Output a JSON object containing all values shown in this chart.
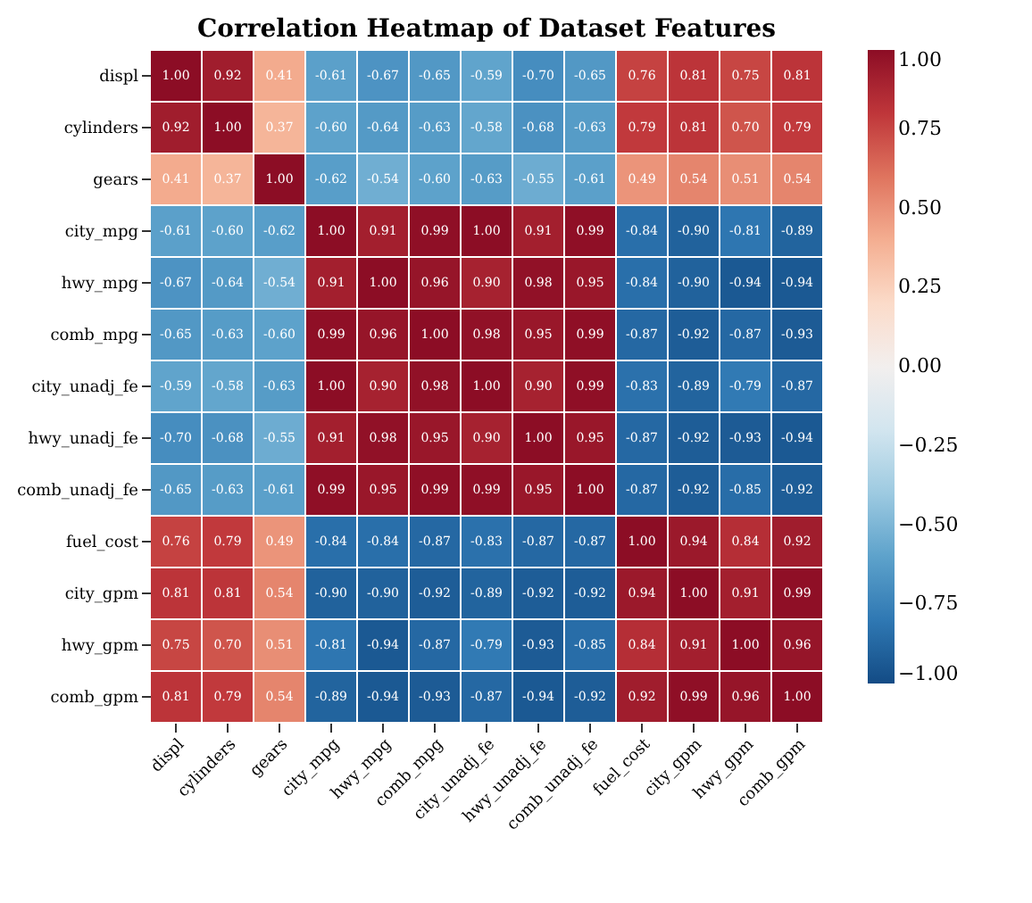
{
  "chart_data": {
    "type": "heatmap",
    "title": "Correlation Heatmap of Dataset Features",
    "categories": [
      "displ",
      "cylinders",
      "gears",
      "city_mpg",
      "hwy_mpg",
      "comb_mpg",
      "city_unadj_fe",
      "hwy_unadj_fe",
      "comb_unadj_fe",
      "fuel_cost",
      "city_gpm",
      "hwy_gpm",
      "comb_gpm"
    ],
    "y_categories": [
      "displ",
      "cylinders",
      "gears",
      "city_mpg",
      "hwy_mpg",
      "comb_mpg",
      "city_unadj_fe",
      "hwy_unadj_fe",
      "comb_unadj_fe",
      "fuel_cost",
      "city_gpm",
      "hwy_gpm",
      "comb_gpm"
    ],
    "cells": [
      [
        1.0,
        0.92,
        0.41,
        -0.61,
        -0.67,
        -0.65,
        -0.59,
        -0.7,
        -0.65,
        0.76,
        0.81,
        0.75,
        0.81
      ],
      [
        0.92,
        1.0,
        0.37,
        -0.6,
        -0.64,
        -0.63,
        -0.58,
        -0.68,
        -0.63,
        0.79,
        0.81,
        0.7,
        0.79
      ],
      [
        0.41,
        0.37,
        1.0,
        -0.62,
        -0.54,
        -0.6,
        -0.63,
        -0.55,
        -0.61,
        0.49,
        0.54,
        0.51,
        0.54
      ],
      [
        -0.61,
        -0.6,
        -0.62,
        1.0,
        0.91,
        0.99,
        1.0,
        0.91,
        0.99,
        -0.84,
        -0.9,
        -0.81,
        -0.89
      ],
      [
        -0.67,
        -0.64,
        -0.54,
        0.91,
        1.0,
        0.96,
        0.9,
        0.98,
        0.95,
        -0.84,
        -0.9,
        -0.94,
        -0.94
      ],
      [
        -0.65,
        -0.63,
        -0.6,
        0.99,
        0.96,
        1.0,
        0.98,
        0.95,
        0.99,
        -0.87,
        -0.92,
        -0.87,
        -0.93
      ],
      [
        -0.59,
        -0.58,
        -0.63,
        1.0,
        0.9,
        0.98,
        1.0,
        0.9,
        0.99,
        -0.83,
        -0.89,
        -0.79,
        -0.87
      ],
      [
        -0.7,
        -0.68,
        -0.55,
        0.91,
        0.98,
        0.95,
        0.9,
        1.0,
        0.95,
        -0.87,
        -0.92,
        -0.93,
        -0.94
      ],
      [
        -0.65,
        -0.63,
        -0.61,
        0.99,
        0.95,
        0.99,
        0.99,
        0.95,
        1.0,
        -0.87,
        -0.92,
        -0.85,
        -0.92
      ],
      [
        0.76,
        0.79,
        0.49,
        -0.84,
        -0.84,
        -0.87,
        -0.83,
        -0.87,
        -0.87,
        1.0,
        0.94,
        0.84,
        0.92
      ],
      [
        0.81,
        0.81,
        0.54,
        -0.9,
        -0.9,
        -0.92,
        -0.89,
        -0.92,
        -0.92,
        0.94,
        1.0,
        0.91,
        0.99
      ],
      [
        0.75,
        0.7,
        0.51,
        -0.81,
        -0.94,
        -0.87,
        -0.79,
        -0.93,
        -0.85,
        0.84,
        0.91,
        1.0,
        0.96
      ],
      [
        0.81,
        0.79,
        0.54,
        -0.89,
        -0.94,
        -0.93,
        -0.87,
        -0.94,
        -0.92,
        0.92,
        0.99,
        0.96,
        1.0
      ]
    ],
    "clim": [
      -1,
      1
    ],
    "cticks": [
      {
        "value": 1,
        "label": "1.00"
      },
      {
        "value": 0.75,
        "label": "0.75"
      },
      {
        "value": 0.5,
        "label": "0.50"
      },
      {
        "value": 0.25,
        "label": "0.25"
      },
      {
        "value": 0,
        "label": "0.00"
      },
      {
        "value": -0.25,
        "label": "−0.25"
      },
      {
        "value": -0.5,
        "label": "−0.50"
      },
      {
        "value": -0.75,
        "label": "−0.75"
      },
      {
        "value": -1,
        "label": "−1.00"
      }
    ],
    "cell_labels": [
      [
        "1.00",
        "0.92",
        "0.41",
        "-0.61",
        "-0.67",
        "-0.65",
        "-0.59",
        "-0.70",
        "-0.65",
        "0.76",
        "0.81",
        "0.75",
        "0.81"
      ],
      [
        "0.92",
        "1.00",
        "0.37",
        "-0.60",
        "-0.64",
        "-0.63",
        "-0.58",
        "-0.68",
        "-0.63",
        "0.79",
        "0.81",
        "0.70",
        "0.79"
      ],
      [
        "0.41",
        "0.37",
        "1.00",
        "-0.62",
        "-0.54",
        "-0.60",
        "-0.63",
        "-0.55",
        "-0.61",
        "0.49",
        "0.54",
        "0.51",
        "0.54"
      ],
      [
        "-0.61",
        "-0.60",
        "-0.62",
        "1.00",
        "0.91",
        "0.99",
        "1.00",
        "0.91",
        "0.99",
        "-0.84",
        "-0.90",
        "-0.81",
        "-0.89"
      ],
      [
        "-0.67",
        "-0.64",
        "-0.54",
        "0.91",
        "1.00",
        "0.96",
        "0.90",
        "0.98",
        "0.95",
        "-0.84",
        "-0.90",
        "-0.94",
        "-0.94"
      ],
      [
        "-0.65",
        "-0.63",
        "-0.60",
        "0.99",
        "0.96",
        "1.00",
        "0.98",
        "0.95",
        "0.99",
        "-0.87",
        "-0.92",
        "-0.87",
        "-0.93"
      ],
      [
        "-0.59",
        "-0.58",
        "-0.63",
        "1.00",
        "0.90",
        "0.98",
        "1.00",
        "0.90",
        "0.99",
        "-0.83",
        "-0.89",
        "-0.79",
        "-0.87"
      ],
      [
        "-0.70",
        "-0.68",
        "-0.55",
        "0.91",
        "0.98",
        "0.95",
        "0.90",
        "1.00",
        "0.95",
        "-0.87",
        "-0.92",
        "-0.93",
        "-0.94"
      ],
      [
        "-0.65",
        "-0.63",
        "-0.61",
        "0.99",
        "0.95",
        "0.99",
        "0.99",
        "0.95",
        "1.00",
        "-0.87",
        "-0.92",
        "-0.85",
        "-0.92"
      ],
      [
        "0.76",
        "0.79",
        "0.49",
        "-0.84",
        "-0.84",
        "-0.87",
        "-0.83",
        "-0.87",
        "-0.87",
        "1.00",
        "0.94",
        "0.84",
        "0.92"
      ],
      [
        "0.81",
        "0.81",
        "0.54",
        "-0.90",
        "-0.90",
        "-0.92",
        "-0.89",
        "-0.92",
        "-0.92",
        "0.94",
        "1.00",
        "0.91",
        "0.99"
      ],
      [
        "0.75",
        "0.70",
        "0.51",
        "-0.81",
        "-0.94",
        "-0.87",
        "-0.79",
        "-0.93",
        "-0.85",
        "0.84",
        "0.91",
        "1.00",
        "0.96"
      ],
      [
        "0.81",
        "0.79",
        "0.54",
        "-0.89",
        "-0.94",
        "-0.93",
        "-0.87",
        "-0.94",
        "-0.92",
        "0.92",
        "0.99",
        "0.96",
        "1.00"
      ]
    ]
  }
}
